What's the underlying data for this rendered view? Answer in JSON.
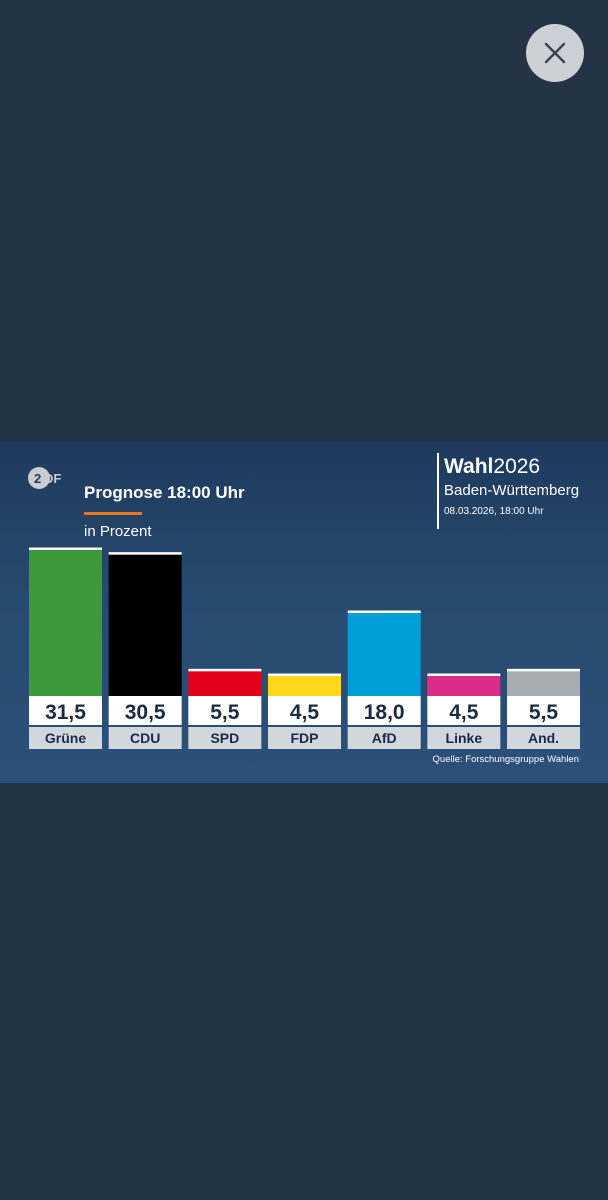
{
  "graphic": {
    "brand_bold": "Wahl",
    "brand_year": "2026",
    "region": "Baden-Württemberg",
    "date": "08.03.2026, 18:00 Uhr",
    "source": "Quelle: Forschungsgruppe Wahlen",
    "icons": {
      "logo": "zdf-logo-icon",
      "close": "close-icon"
    }
  },
  "chart_data": {
    "type": "bar",
    "title": "Prognose 18:00 Uhr",
    "subtitle": "in Prozent",
    "categories": [
      "Grüne",
      "CDU",
      "SPD",
      "FDP",
      "AfD",
      "Linke",
      "And."
    ],
    "values": [
      31.5,
      30.5,
      5.5,
      4.5,
      18.0,
      4.5,
      5.5
    ],
    "value_labels": [
      "31,5",
      "30,5",
      "5,5",
      "4,5",
      "18,0",
      "4,5",
      "5,5"
    ],
    "colors": [
      "#3d9a3b",
      "#000000",
      "#e3001b",
      "#fdd51a",
      "#009ed8",
      "#db2c89",
      "#a8adb2"
    ],
    "ylim": [
      0,
      31.5
    ],
    "grid": false,
    "legend": "none"
  }
}
